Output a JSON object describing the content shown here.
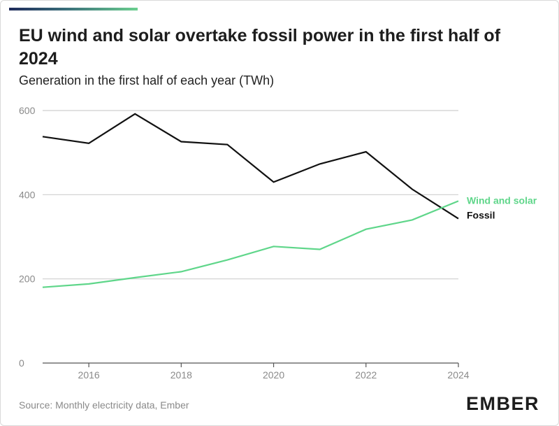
{
  "header": {
    "title": "EU wind and solar overtake fossil power in the first half of 2024",
    "subtitle": "Generation in the first half of each year (TWh)"
  },
  "footer": {
    "source": "Source: Monthly electricity data, Ember",
    "logo_text": "EMBER"
  },
  "colors": {
    "fossil": "#111111",
    "wind_solar": "#5fd68a",
    "grid": "#cfcfcf",
    "logo": "#1d1d1d"
  },
  "chart_data": {
    "type": "line",
    "title": "EU wind and solar overtake fossil power in the first half of 2024",
    "subtitle": "Generation in the first half of each year (TWh)",
    "x": [
      2015,
      2016,
      2017,
      2018,
      2019,
      2020,
      2021,
      2022,
      2023,
      2024
    ],
    "xticks": [
      "2016",
      "2018",
      "2020",
      "2022",
      "2024"
    ],
    "yticks": [
      "0",
      "200",
      "400",
      "600"
    ],
    "xlim": [
      2015,
      2024
    ],
    "ylim": [
      0,
      600
    ],
    "grid": true,
    "series": [
      {
        "name": "Fossil",
        "values": [
          538,
          522,
          592,
          526,
          519,
          430,
          473,
          502,
          413,
          343
        ]
      },
      {
        "name": "Wind and solar",
        "values": [
          180,
          188,
          203,
          217,
          245,
          277,
          270,
          318,
          340,
          385
        ]
      }
    ]
  }
}
